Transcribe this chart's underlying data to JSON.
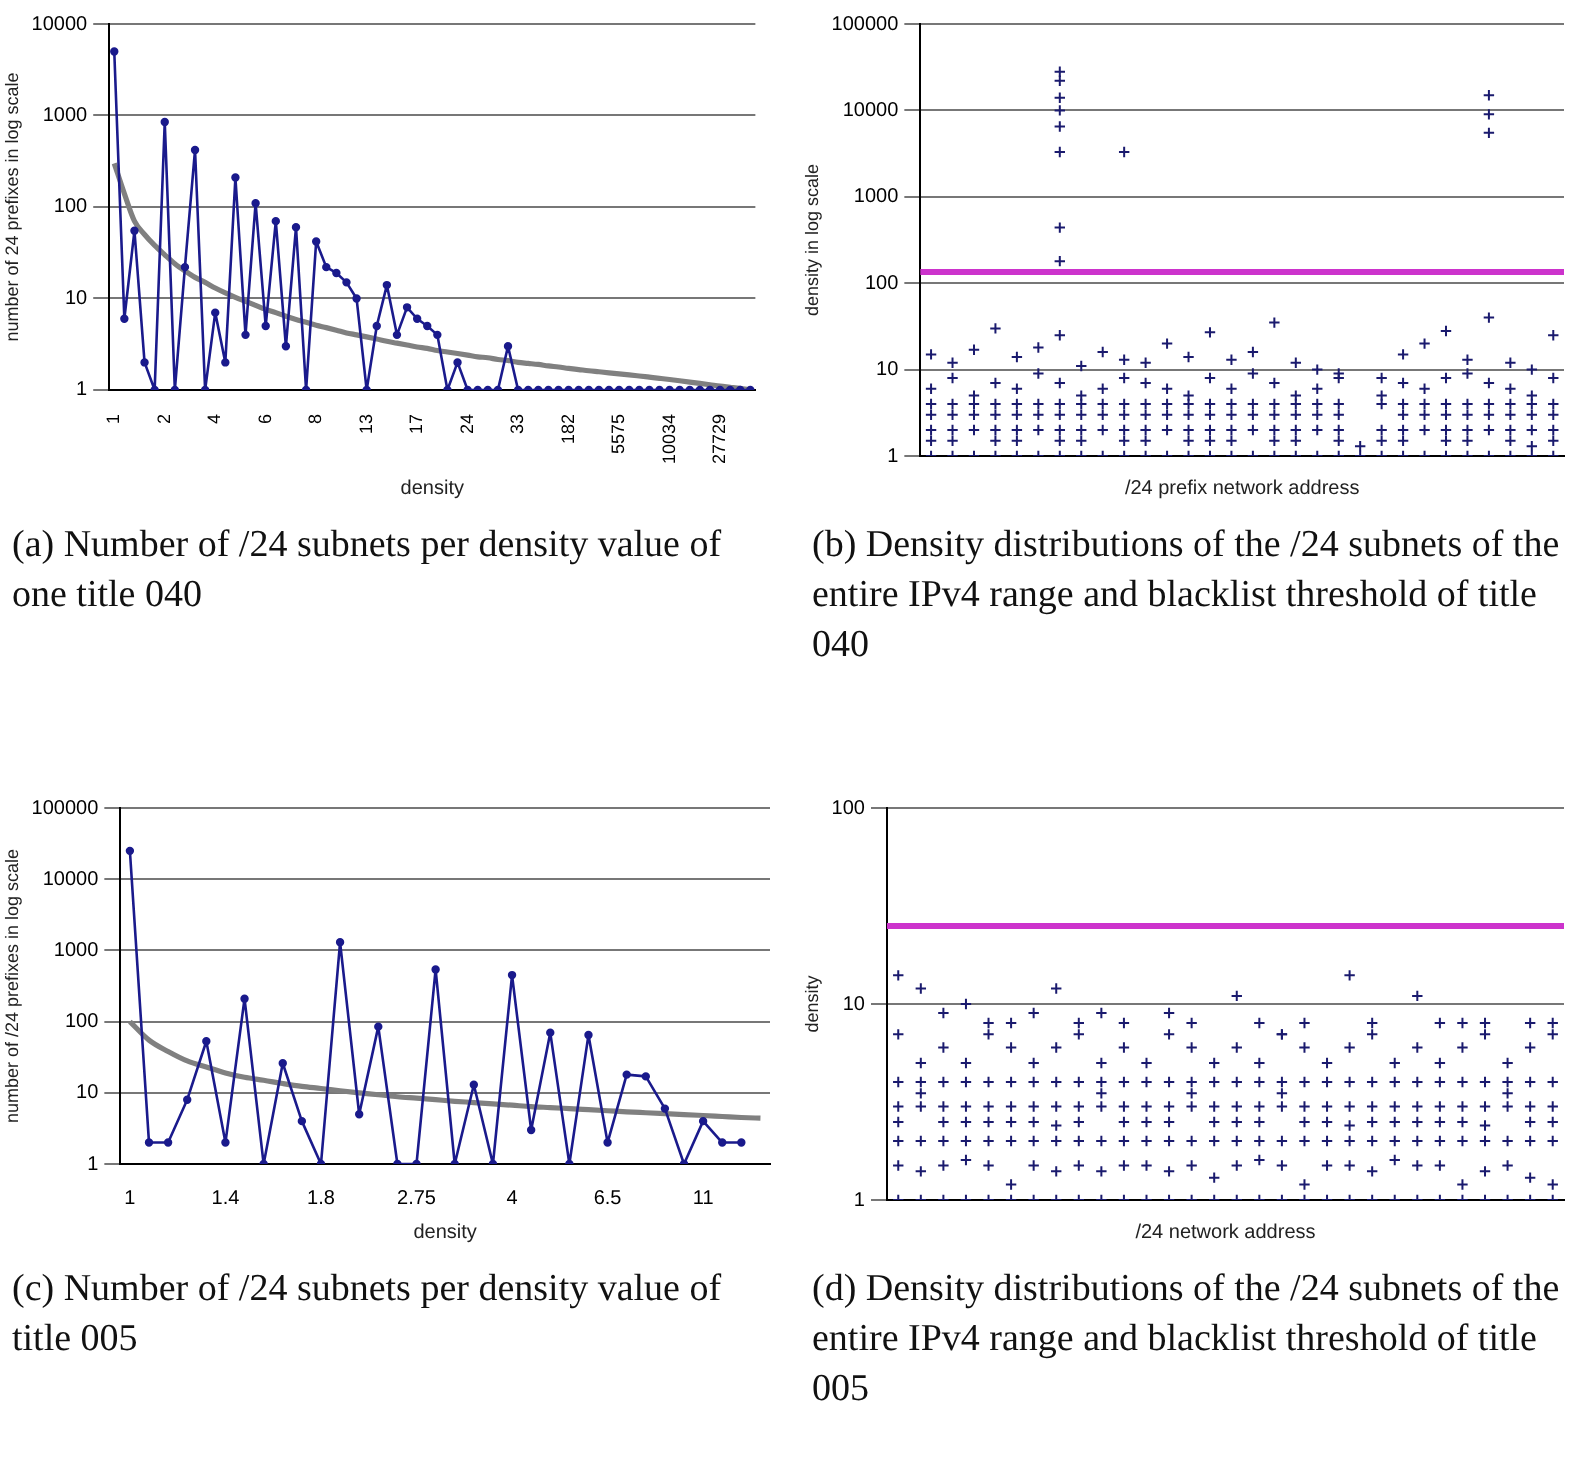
{
  "chart_data": [
    {
      "type": "line",
      "xlabel": "density",
      "ylabel": "number of 24 prefixes in log scale",
      "log": true,
      "ylim": [
        1,
        10000
      ],
      "yticks": [
        1,
        10,
        100,
        1000,
        10000
      ],
      "grid": "y",
      "marker": "circle",
      "categories": [
        "1",
        null,
        null,
        null,
        null,
        "2",
        null,
        null,
        null,
        null,
        "4",
        null,
        null,
        null,
        null,
        "6",
        null,
        null,
        null,
        null,
        "8",
        null,
        null,
        null,
        null,
        "13",
        null,
        null,
        null,
        null,
        "17",
        null,
        null,
        null,
        null,
        "24",
        null,
        null,
        null,
        null,
        "33",
        null,
        null,
        null,
        null,
        "182",
        null,
        null,
        null,
        null,
        "5575",
        null,
        null,
        null,
        null,
        "10034",
        null,
        null,
        null,
        null,
        "27729",
        null,
        null,
        null
      ],
      "series": [
        {
          "color": "#1a1a8c",
          "values": [
            5000,
            6,
            55,
            2,
            1,
            850,
            1,
            22,
            420,
            1,
            7,
            2,
            210,
            4,
            110,
            5,
            70,
            3,
            60,
            1,
            42,
            22,
            19,
            15,
            10,
            1,
            5,
            14,
            4,
            8,
            6,
            5,
            4,
            1,
            2,
            1,
            1,
            1,
            1,
            3,
            1,
            1,
            1,
            1,
            1,
            1,
            1,
            1,
            1,
            1,
            1,
            1,
            1,
            1,
            1,
            1,
            1,
            1,
            1,
            1,
            1,
            1,
            1,
            1
          ]
        },
        {
          "type": "line",
          "marker": "none",
          "color": "#808080",
          "values": [
            300,
            140,
            70,
            50,
            38,
            30,
            24,
            20,
            17,
            15,
            13,
            11.5,
            10.3,
            9.3,
            8.4,
            7.6,
            7,
            6.4,
            5.9,
            5.5,
            5.1,
            4.8,
            4.5,
            4.2,
            4,
            3.8,
            3.6,
            3.4,
            3.25,
            3.1,
            2.95,
            2.85,
            2.7,
            2.6,
            2.5,
            2.4,
            2.3,
            2.25,
            2.15,
            2.1,
            2,
            1.95,
            1.9,
            1.83,
            1.78,
            1.72,
            1.67,
            1.62,
            1.58,
            1.54,
            1.5,
            1.46,
            1.42,
            1.38,
            1.34,
            1.3,
            1.26,
            1.22,
            1.18,
            1.14,
            1.1,
            1.07,
            1.04,
            1
          ]
        }
      ],
      "annotations": [
        "(a) Number of /24 subnets per density value of one title 040"
      ]
    },
    {
      "type": "scatter",
      "xlabel": "/24 prefix network address",
      "ylabel": "density in log scale",
      "log": true,
      "ylim": [
        1,
        100000
      ],
      "yticks": [
        1,
        10,
        100,
        1000,
        10000,
        100000
      ],
      "grid": "y",
      "marker": "cross",
      "tick_labels": "y",
      "categories": [
        null,
        null,
        null,
        null,
        null,
        null,
        null,
        null,
        null,
        null,
        null,
        null,
        null,
        null,
        null,
        null,
        null,
        null,
        null,
        null,
        null,
        null,
        null,
        null,
        null,
        null,
        null,
        null,
        null,
        null
      ],
      "ref_lines": [
        {
          "axis": "y",
          "value": 135,
          "color": "#cc33cc"
        }
      ],
      "series": [
        {
          "color": "#1a1a6e",
          "values": [
            1,
            1,
            1,
            1,
            1,
            1,
            1,
            1,
            1,
            1,
            1,
            1,
            1,
            1,
            1,
            1,
            1,
            1,
            1,
            1,
            1,
            1,
            1,
            1,
            1,
            1,
            1,
            1,
            1,
            1
          ]
        },
        {
          "color": "#1a1a6e",
          "values": [
            2,
            2,
            2,
            2,
            2,
            2,
            2,
            2,
            2,
            2,
            2,
            2,
            2,
            2,
            2,
            2,
            2,
            2,
            2,
            2,
            null,
            2,
            2,
            2,
            2,
            2,
            2,
            2,
            2,
            2
          ]
        },
        {
          "color": "#1a1a6e",
          "values": [
            3,
            3,
            3,
            3,
            3,
            3,
            3,
            3,
            3,
            3,
            3,
            3,
            3,
            3,
            3,
            3,
            3,
            3,
            3,
            3,
            null,
            null,
            3,
            3,
            3,
            3,
            3,
            3,
            3,
            3
          ]
        },
        {
          "color": "#1a1a6e",
          "values": [
            4,
            4,
            4,
            4,
            4,
            4,
            4,
            4,
            4,
            4,
            4,
            4,
            4,
            4,
            4,
            4,
            4,
            4,
            4,
            4,
            null,
            4,
            4,
            4,
            4,
            4,
            4,
            4,
            4,
            4
          ]
        },
        {
          "color": "#1a1a6e",
          "values": [
            6,
            8,
            5,
            7,
            6,
            9,
            7,
            5,
            6,
            8,
            7,
            6,
            5,
            8,
            6,
            9,
            7,
            5,
            6,
            8,
            null,
            5,
            7,
            6,
            8,
            9,
            7,
            6,
            5,
            8
          ]
        },
        {
          "color": "#1a1a6e",
          "values": [
            15,
            12,
            17,
            30,
            14,
            18,
            25,
            11,
            16,
            13,
            12,
            20,
            14,
            27,
            13,
            16,
            35,
            12,
            10,
            9,
            null,
            8,
            15,
            20,
            28,
            13,
            40,
            12,
            10,
            25
          ]
        },
        {
          "color": "#1a1a6e",
          "values": [
            1.5,
            1.5,
            null,
            1.5,
            1.5,
            null,
            1.5,
            1.5,
            null,
            1.5,
            1.5,
            null,
            1.5,
            1.5,
            1.5,
            null,
            1.5,
            1.5,
            null,
            1.5,
            1.3,
            1.5,
            1.5,
            null,
            1.5,
            1.5,
            null,
            1.5,
            1.3,
            1.5
          ]
        },
        {
          "color": "#1a1a6e",
          "values": [
            null,
            null,
            null,
            null,
            null,
            null,
            28000,
            null,
            null,
            3300,
            null,
            null,
            null,
            null,
            null,
            null,
            null,
            null,
            null,
            null,
            null,
            null,
            null,
            null,
            null,
            null,
            15000,
            null,
            null,
            null
          ]
        },
        {
          "color": "#1a1a6e",
          "values": [
            null,
            null,
            null,
            null,
            null,
            null,
            22000,
            null,
            null,
            null,
            null,
            null,
            null,
            null,
            null,
            null,
            null,
            null,
            null,
            null,
            null,
            null,
            null,
            null,
            null,
            null,
            9000,
            null,
            null,
            null
          ]
        },
        {
          "color": "#1a1a6e",
          "values": [
            null,
            null,
            null,
            null,
            null,
            null,
            14000,
            null,
            null,
            null,
            null,
            null,
            null,
            null,
            null,
            null,
            null,
            null,
            null,
            null,
            null,
            null,
            null,
            null,
            null,
            null,
            5500,
            null,
            null,
            null
          ]
        },
        {
          "color": "#1a1a6e",
          "values": [
            null,
            null,
            null,
            null,
            null,
            null,
            10000,
            null,
            null,
            null,
            null,
            null,
            null,
            null,
            null,
            null,
            null,
            null,
            null,
            null,
            null,
            null,
            null,
            null,
            null,
            null,
            null,
            null,
            null,
            null
          ]
        },
        {
          "color": "#1a1a6e",
          "values": [
            null,
            null,
            null,
            null,
            null,
            null,
            6500,
            null,
            null,
            null,
            null,
            null,
            null,
            null,
            null,
            null,
            null,
            null,
            null,
            null,
            null,
            null,
            null,
            null,
            null,
            null,
            null,
            null,
            null,
            null
          ]
        },
        {
          "color": "#1a1a6e",
          "values": [
            null,
            null,
            null,
            null,
            null,
            null,
            3300,
            null,
            null,
            null,
            null,
            null,
            null,
            null,
            null,
            null,
            null,
            null,
            null,
            null,
            null,
            null,
            null,
            null,
            null,
            null,
            null,
            null,
            null,
            null
          ]
        },
        {
          "color": "#1a1a6e",
          "values": [
            null,
            null,
            null,
            null,
            null,
            null,
            440,
            null,
            null,
            null,
            null,
            null,
            null,
            null,
            null,
            null,
            null,
            null,
            null,
            null,
            null,
            null,
            null,
            null,
            null,
            null,
            null,
            null,
            null,
            null
          ]
        },
        {
          "color": "#1a1a6e",
          "values": [
            null,
            null,
            null,
            null,
            null,
            null,
            180,
            null,
            null,
            null,
            null,
            null,
            null,
            null,
            null,
            null,
            null,
            null,
            null,
            null,
            null,
            null,
            null,
            null,
            null,
            null,
            null,
            null,
            null,
            null
          ]
        }
      ],
      "annotations": [
        "(b) Density distributions of the /24 subnets of the entire IPv4 range and blacklist threshold of title 040"
      ]
    },
    {
      "type": "line",
      "xlabel": "density",
      "ylabel": "number of /24 prefixes in log scale",
      "log": true,
      "ylim": [
        1,
        100000
      ],
      "yticks": [
        1,
        10,
        100,
        1000,
        10000,
        100000
      ],
      "grid": "y",
      "marker": "circle",
      "categories": [
        "1",
        null,
        null,
        null,
        null,
        "1.4",
        null,
        null,
        null,
        null,
        "1.8",
        null,
        null,
        null,
        null,
        "2.75",
        null,
        null,
        null,
        null,
        "4",
        null,
        null,
        null,
        null,
        "6.5",
        null,
        null,
        null,
        null,
        "11",
        null,
        null,
        null
      ],
      "series": [
        {
          "color": "#1a1a8c",
          "values": [
            25000,
            2,
            2,
            8,
            53,
            2,
            210,
            1,
            26,
            4,
            1,
            1300,
            5,
            85,
            1,
            1,
            540,
            1,
            13,
            1,
            450,
            3,
            70,
            1,
            65,
            2,
            18,
            17,
            6,
            1,
            4,
            2,
            2,
            null
          ]
        },
        {
          "type": "line",
          "marker": "none",
          "color": "#808080",
          "values": [
            100,
            55,
            38,
            28,
            23,
            19,
            16.5,
            15,
            13.5,
            12.3,
            11.5,
            10.7,
            10,
            9.4,
            8.8,
            8.4,
            8,
            7.6,
            7.3,
            7,
            6.7,
            6.4,
            6.2,
            6,
            5.8,
            5.6,
            5.4,
            5.25,
            5.1,
            4.95,
            4.8,
            4.65,
            4.5,
            4.4
          ]
        }
      ],
      "annotations": [
        "(c) Number of /24 subnets per density value of title 005"
      ]
    },
    {
      "type": "scatter",
      "xlabel": "/24 network address",
      "ylabel": "density",
      "log": true,
      "ylim": [
        1,
        100
      ],
      "yticks": [
        1,
        10,
        100
      ],
      "grid": "y",
      "marker": "cross",
      "tick_labels": "y",
      "categories": [
        null,
        null,
        null,
        null,
        null,
        null,
        null,
        null,
        null,
        null,
        null,
        null,
        null,
        null,
        null,
        null,
        null,
        null,
        null,
        null,
        null,
        null,
        null,
        null,
        null,
        null,
        null,
        null,
        null,
        null
      ],
      "ref_lines": [
        {
          "axis": "y",
          "value": 25,
          "color": "#cc33cc"
        }
      ],
      "series": [
        {
          "color": "#1a1a6e",
          "values": [
            1,
            1,
            1,
            1,
            1,
            1,
            1,
            1,
            1,
            1,
            1,
            1,
            1,
            1,
            1,
            1,
            1,
            1,
            1,
            1,
            1,
            1,
            1,
            1,
            1,
            1,
            1,
            1,
            1,
            1
          ]
        },
        {
          "color": "#1a1a6e",
          "values": [
            2,
            2,
            2,
            2,
            2,
            2,
            2,
            2,
            2,
            2,
            2,
            2,
            2,
            2,
            2,
            2,
            2,
            2,
            2,
            2,
            2,
            2,
            2,
            2,
            2,
            2,
            2,
            2,
            2,
            2
          ]
        },
        {
          "color": "#1a1a6e",
          "values": [
            3,
            3,
            3,
            3,
            3,
            3,
            3,
            3,
            3,
            3,
            3,
            3,
            3,
            3,
            3,
            3,
            3,
            3,
            3,
            3,
            3,
            3,
            3,
            3,
            3,
            3,
            3,
            3,
            3,
            3
          ]
        },
        {
          "color": "#1a1a6e",
          "values": [
            4,
            4,
            4,
            4,
            4,
            4,
            4,
            4,
            4,
            4,
            4,
            4,
            4,
            4,
            4,
            4,
            4,
            4,
            4,
            4,
            4,
            4,
            4,
            4,
            4,
            4,
            4,
            4,
            4,
            4
          ]
        },
        {
          "color": "#1a1a6e",
          "values": [
            7,
            5,
            6,
            5,
            7,
            6,
            5,
            6,
            7,
            5,
            6,
            5,
            7,
            6,
            5,
            6,
            5,
            7,
            6,
            5,
            6,
            7,
            5,
            6,
            5,
            6,
            7,
            5,
            6,
            7
          ]
        },
        {
          "color": "#1a1a6e",
          "values": [
            14,
            12,
            9,
            10,
            8,
            8,
            9,
            12,
            8,
            9,
            8,
            null,
            9,
            8,
            null,
            11,
            8,
            7,
            8,
            null,
            14,
            8,
            null,
            11,
            8,
            8,
            8,
            null,
            8,
            8
          ]
        },
        {
          "color": "#1a1a6e",
          "values": [
            1.5,
            1.4,
            1.5,
            1.6,
            1.5,
            1.2,
            1.5,
            1.4,
            1.5,
            1.4,
            1.5,
            1.5,
            1.4,
            1.5,
            1.3,
            1.5,
            1.6,
            1.5,
            1.2,
            1.5,
            1.5,
            1.4,
            1.6,
            1.5,
            1.5,
            1.2,
            1.4,
            1.5,
            1.3,
            1.2
          ]
        },
        {
          "color": "#1a1a6e",
          "values": [
            2.5,
            3.5,
            2.5,
            2.5,
            2.5,
            2.5,
            2.5,
            2.4,
            2.5,
            3.5,
            2.5,
            2.5,
            2.5,
            3.5,
            2.5,
            2.5,
            2.5,
            3.5,
            2.5,
            2.5,
            2.4,
            2.5,
            2.5,
            2.5,
            2.5,
            2.5,
            2.4,
            3.5,
            2.5,
            2.5
          ]
        }
      ],
      "annotations": [
        "(d) Density distributions of the /24 subnets of the entire IPv4 range and blacklist threshold of title 005"
      ]
    }
  ]
}
